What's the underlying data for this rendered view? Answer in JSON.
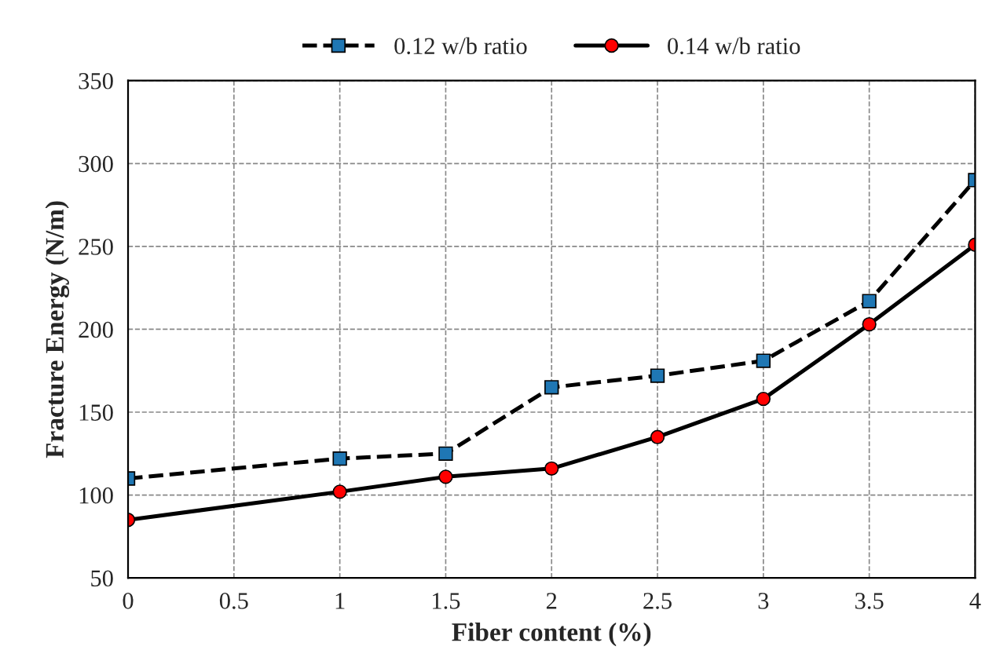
{
  "chart_data": {
    "type": "line",
    "xlabel": "Fiber content (%)",
    "ylabel": "Fracture Energy (N/m)",
    "xlim": [
      0,
      4
    ],
    "xticks": [
      0,
      0.5,
      1,
      1.5,
      2,
      2.5,
      3,
      3.5,
      4
    ],
    "ylim": [
      50,
      350
    ],
    "yticks": [
      50,
      100,
      150,
      200,
      250,
      300,
      350
    ],
    "grid": true,
    "legend": "top",
    "series": [
      {
        "name": "0.12 w/b ratio",
        "color": "#1f77b4",
        "marker": "square",
        "line_style": "dashed",
        "x": [
          0,
          1,
          1.5,
          2,
          2.5,
          3,
          3.5,
          4
        ],
        "values": [
          110,
          122,
          125,
          165,
          172,
          181,
          217,
          290
        ]
      },
      {
        "name": "0.14 w/b ratio",
        "color": "#ff0000",
        "marker": "circle",
        "line_style": "solid",
        "x": [
          0,
          1,
          1.5,
          2,
          2.5,
          3,
          3.5,
          4
        ],
        "values": [
          85,
          102,
          111,
          116,
          135,
          158,
          203,
          251
        ]
      }
    ]
  }
}
